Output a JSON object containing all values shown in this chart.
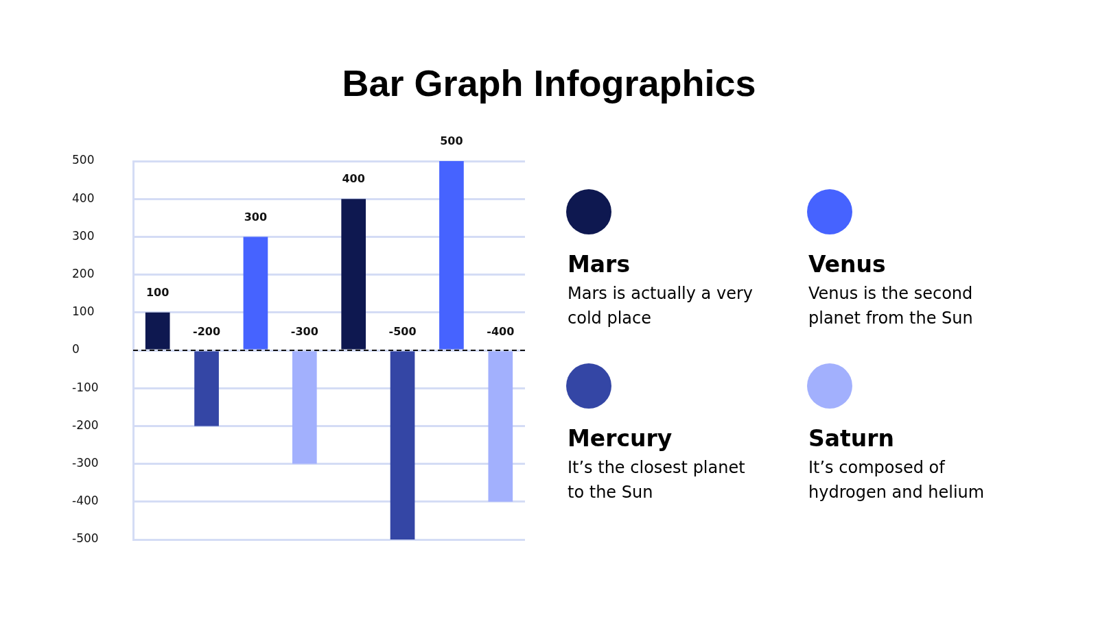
{
  "chart_data": {
    "type": "bar",
    "title": "Bar Graph Infographics",
    "categories": [
      null,
      null,
      null,
      null,
      null,
      null,
      null,
      null
    ],
    "series": [
      {
        "name": "Mars",
        "color": "#0e1850",
        "values": [
          100,
          null,
          null,
          null,
          400,
          null,
          null,
          null
        ]
      },
      {
        "name": "Venus",
        "color": "#4663ff",
        "values": [
          null,
          null,
          300,
          null,
          null,
          null,
          500,
          null
        ]
      },
      {
        "name": "Mercury",
        "color": "#3446a5",
        "values": [
          null,
          -200,
          null,
          null,
          null,
          -500,
          null,
          null
        ]
      },
      {
        "name": "Saturn",
        "color": "#a2b0fd",
        "values": [
          null,
          null,
          null,
          -300,
          null,
          null,
          null,
          -400
        ]
      }
    ],
    "stacked": true,
    "ylim": [
      -500,
      500
    ],
    "yticks": [
      -500,
      -400,
      -300,
      -200,
      -100,
      0,
      100,
      200,
      300,
      400,
      500
    ],
    "grid": "y",
    "data_labels": true,
    "ref_lines": [
      {
        "axis": "y",
        "value": 0,
        "color": "#111111",
        "line_style": "dashed"
      }
    ],
    "legend": "right",
    "annotations": [
      "Mars is actually a very cold place",
      "Venus is the second planet from the Sun",
      "It’s the closest planet to the Sun",
      "It’s composed of hydrogen and helium"
    ]
  }
}
